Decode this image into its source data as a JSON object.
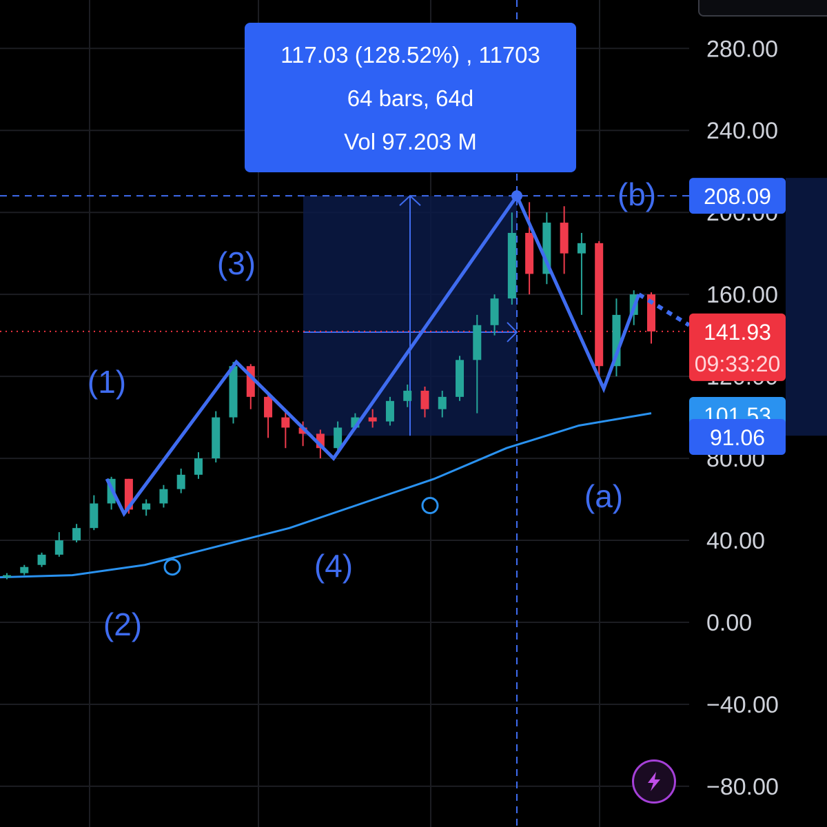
{
  "chart_data": {
    "type": "candlestick",
    "y_ticks": [
      "280.00",
      "240.00",
      "200.00",
      "160.00",
      "120.00",
      "80.00",
      "40.00",
      "0.00",
      "−40.00",
      "−80.00"
    ],
    "ylim": [
      -100,
      300
    ],
    "grid": true,
    "measure_box": {
      "line1": "117.03 (128.52%) , 11703",
      "line2": "64 bars, 64d",
      "line3": "Vol 97.203 M",
      "low": 91.06,
      "high": 208.09
    },
    "price_tags": [
      {
        "value": "208.09",
        "color": "#2e62f5"
      },
      {
        "value": "141.93",
        "sub": "09:33:20",
        "color": "#ef3340"
      },
      {
        "value": "101.53",
        "color": "#2a92f0"
      },
      {
        "value": "91.06",
        "color": "#2e62f5"
      }
    ],
    "current_price": 141.93,
    "wave_labels": [
      {
        "text": "(1)"
      },
      {
        "text": "(2)"
      },
      {
        "text": "(3)"
      },
      {
        "text": "(4)"
      },
      {
        "text": "(a)"
      },
      {
        "text": "(b)"
      }
    ],
    "wave_points": [
      [
        0,
        70
      ],
      [
        1,
        53
      ],
      [
        2,
        127
      ],
      [
        3,
        80
      ],
      [
        4,
        208
      ],
      [
        5,
        114
      ],
      [
        6,
        160
      ]
    ],
    "moving_average": [
      [
        0,
        22
      ],
      [
        1,
        23
      ],
      [
        2,
        28
      ],
      [
        3,
        37
      ],
      [
        4,
        46
      ],
      [
        5,
        58
      ],
      [
        6,
        70
      ],
      [
        7,
        85
      ],
      [
        8,
        96
      ],
      [
        9,
        102
      ]
    ],
    "candles_sample": [
      [
        22,
        23,
        21,
        24
      ],
      [
        24,
        27,
        23,
        28
      ],
      [
        28,
        33,
        27,
        34
      ],
      [
        33,
        40,
        32,
        44
      ],
      [
        40,
        46,
        39,
        48
      ],
      [
        46,
        58,
        45,
        62
      ],
      [
        58,
        70,
        55,
        71
      ],
      [
        70,
        55,
        53,
        70
      ],
      [
        55,
        58,
        52,
        60
      ],
      [
        58,
        65,
        56,
        67
      ],
      [
        65,
        72,
        63,
        75
      ],
      [
        72,
        80,
        70,
        83
      ],
      [
        80,
        100,
        78,
        103
      ],
      [
        100,
        125,
        97,
        127
      ],
      [
        125,
        110,
        104,
        126
      ],
      [
        110,
        100,
        90,
        112
      ],
      [
        100,
        95,
        85,
        103
      ],
      [
        95,
        92,
        86,
        98
      ],
      [
        92,
        85,
        80,
        94
      ],
      [
        85,
        95,
        83,
        98
      ],
      [
        95,
        100,
        94,
        102
      ],
      [
        100,
        98,
        95,
        104
      ],
      [
        98,
        108,
        96,
        110
      ],
      [
        108,
        113,
        105,
        116
      ],
      [
        113,
        104,
        100,
        115
      ],
      [
        104,
        110,
        100,
        113
      ],
      [
        110,
        128,
        108,
        130
      ],
      [
        128,
        145,
        102,
        150
      ],
      [
        145,
        158,
        140,
        160
      ],
      [
        158,
        190,
        155,
        200
      ],
      [
        190,
        170,
        160,
        205
      ],
      [
        170,
        195,
        165,
        200
      ],
      [
        195,
        180,
        170,
        203
      ],
      [
        180,
        185,
        150,
        190
      ],
      [
        185,
        125,
        118,
        186
      ],
      [
        125,
        150,
        120,
        158
      ],
      [
        150,
        160,
        145,
        162
      ],
      [
        160,
        141.93,
        136,
        161
      ]
    ]
  },
  "icons": {
    "lightning": "lightning-icon"
  }
}
